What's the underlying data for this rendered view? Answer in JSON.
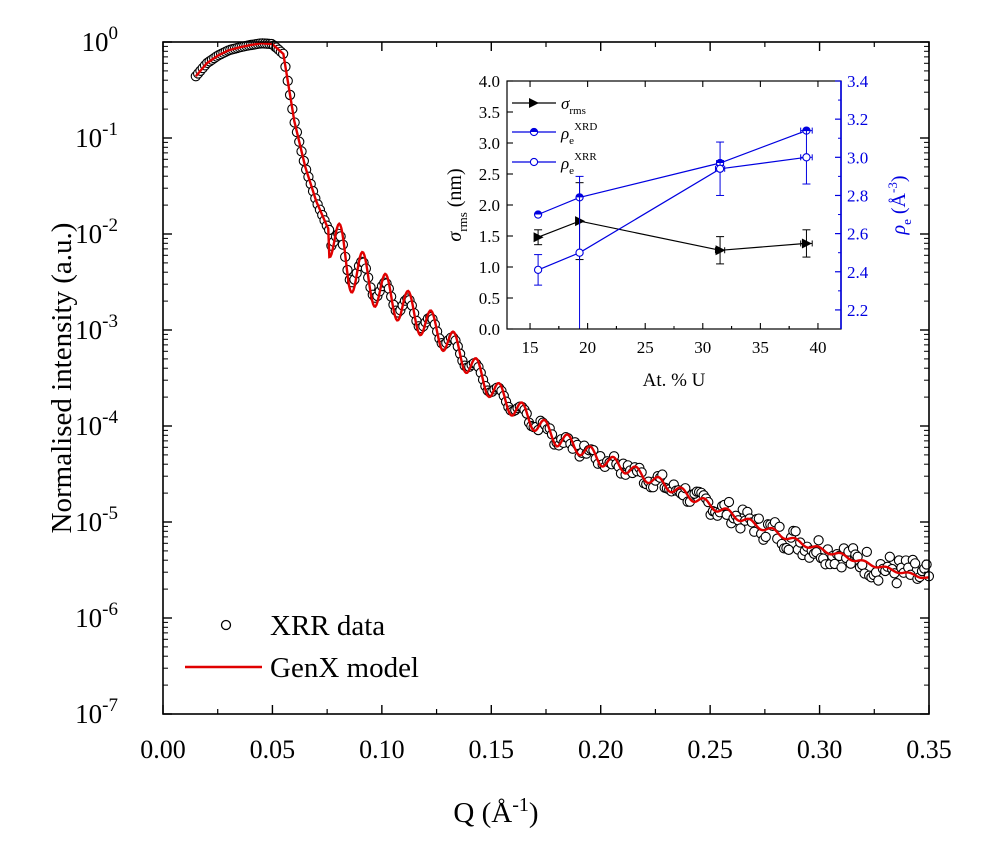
{
  "chart_data": [
    {
      "type": "scatter",
      "xlabel": {
        "base": "Q (Å",
        "sup": "-1",
        "tail": ")"
      },
      "ylabel": "Normalised intensity (a.u.)",
      "xlim": [
        0,
        0.35
      ],
      "ylim_exp": [
        -7,
        0
      ],
      "yscale": "log",
      "x_ticks": [
        "0.00",
        "0.05",
        "0.10",
        "0.15",
        "0.20",
        "0.25",
        "0.30",
        "0.35"
      ],
      "y_ticks": [
        {
          "base": "10",
          "exp": "0"
        },
        {
          "base": "10",
          "exp": "-1"
        },
        {
          "base": "10",
          "exp": "-2"
        },
        {
          "base": "10",
          "exp": "-3"
        },
        {
          "base": "10",
          "exp": "-4"
        },
        {
          "base": "10",
          "exp": "-5"
        },
        {
          "base": "10",
          "exp": "-6"
        },
        {
          "base": "10",
          "exp": "-7"
        }
      ],
      "legend": {
        "position": "bottom-left",
        "entries": [
          {
            "label": "XRR data",
            "marker": "open-circle",
            "color": "#000000"
          },
          {
            "label": "GenX model",
            "marker": "line",
            "color": "#e00000"
          }
        ]
      },
      "series": [
        {
          "name": "XRR data",
          "kind": "points",
          "color": "#000000",
          "x_range": [
            0.015,
            0.35
          ],
          "points": [
            [
              0.015,
              0.44
            ],
            [
              0.02,
              0.6
            ],
            [
              0.025,
              0.72
            ],
            [
              0.03,
              0.82
            ],
            [
              0.035,
              0.88
            ],
            [
              0.04,
              0.93
            ],
            [
              0.045,
              0.97
            ],
            [
              0.05,
              0.95
            ],
            [
              0.055,
              0.75
            ],
            [
              0.06,
              0.15
            ],
            [
              0.065,
              0.05
            ],
            [
              0.07,
              0.022
            ],
            [
              0.075,
              0.012
            ],
            [
              0.08,
              0.0075
            ],
            [
              0.085,
              0.0045
            ],
            [
              0.09,
              0.004
            ],
            [
              0.1,
              0.0025
            ],
            [
              0.11,
              0.0018
            ],
            [
              0.12,
              0.0012
            ],
            [
              0.13,
              0.0008
            ],
            [
              0.14,
              0.00045
            ],
            [
              0.15,
              0.00025
            ],
            [
              0.16,
              0.00016
            ],
            [
              0.17,
              0.00011
            ],
            [
              0.18,
              7.5e-05
            ],
            [
              0.19,
              6e-05
            ],
            [
              0.2,
              4.5e-05
            ],
            [
              0.21,
              3.8e-05
            ],
            [
              0.22,
              3e-05
            ],
            [
              0.23,
              2.4e-05
            ],
            [
              0.24,
              1.9e-05
            ],
            [
              0.25,
              1.5e-05
            ],
            [
              0.26,
              1.2e-05
            ],
            [
              0.27,
              9.5e-06
            ],
            [
              0.28,
              7.8e-06
            ],
            [
              0.29,
              6.2e-06
            ],
            [
              0.3,
              5.2e-06
            ],
            [
              0.31,
              4.5e-06
            ],
            [
              0.32,
              3.8e-06
            ],
            [
              0.33,
              3.3e-06
            ],
            [
              0.34,
              2.9e-06
            ],
            [
              0.35,
              2.6e-06
            ]
          ]
        },
        {
          "name": "GenX model",
          "kind": "line",
          "color": "#e00000",
          "x_range": [
            0.015,
            0.35
          ]
        }
      ]
    },
    {
      "type": "line",
      "xlabel": "At. % U",
      "ylabel_left": {
        "base": "σ",
        "sub": "rms",
        "tail": " (nm)"
      },
      "ylabel_right": {
        "base": "ρ",
        "sub": "e",
        "mid": " (Å",
        "sup": "-3",
        "tail": ")"
      },
      "xlim": [
        13,
        42
      ],
      "ylim_left": [
        0,
        4
      ],
      "ylim_right": [
        2.1,
        3.4
      ],
      "x_ticks": [
        "15",
        "20",
        "25",
        "30",
        "35",
        "40"
      ],
      "y_ticks_left": [
        "0.0",
        "0.5",
        "1.0",
        "1.5",
        "2.0",
        "2.5",
        "3.0",
        "3.5",
        "4.0"
      ],
      "y_ticks_right": [
        "2.2",
        "2.4",
        "2.6",
        "2.8",
        "3.0",
        "3.2",
        "3.4"
      ],
      "legend": {
        "position": "top-left",
        "entries": [
          {
            "base": "σ",
            "sub": "rms",
            "sup": "",
            "color": "#000000"
          },
          {
            "base": "ρ",
            "sub": "e",
            "sup": "XRD",
            "color": "#0000e0"
          },
          {
            "base": "ρ",
            "sub": "e",
            "sup": "XRR",
            "color": "#0000e0"
          }
        ]
      },
      "series": [
        {
          "name": "σrms",
          "axis": "left",
          "color": "#000000",
          "marker": "right-triangle",
          "x": [
            15.7,
            19.3,
            31.5,
            39.0
          ],
          "y": [
            1.48,
            1.74,
            1.27,
            1.38
          ],
          "err": [
            0.12,
            0.62,
            0.22,
            0.22
          ],
          "xerr": [
            0,
            0,
            0.4,
            0.5
          ]
        },
        {
          "name": "ρe XRD",
          "axis": "right",
          "color": "#0000e0",
          "marker": "half-filled-circle",
          "x": [
            15.7,
            19.3,
            31.5,
            39.0
          ],
          "y": [
            2.7,
            2.79,
            2.97,
            3.14
          ],
          "err": [
            0,
            0,
            0,
            0
          ],
          "xerr": [
            0,
            0,
            0.3,
            0.5
          ]
        },
        {
          "name": "ρe XRR",
          "axis": "right",
          "color": "#0000e0",
          "marker": "open-circle",
          "x": [
            15.7,
            19.3,
            31.5,
            39.0
          ],
          "y": [
            2.41,
            2.5,
            2.94,
            3.0
          ],
          "err": [
            0.08,
            0.4,
            0.14,
            0.14
          ],
          "xerr": [
            0,
            0,
            0.4,
            0.5
          ]
        }
      ]
    }
  ]
}
